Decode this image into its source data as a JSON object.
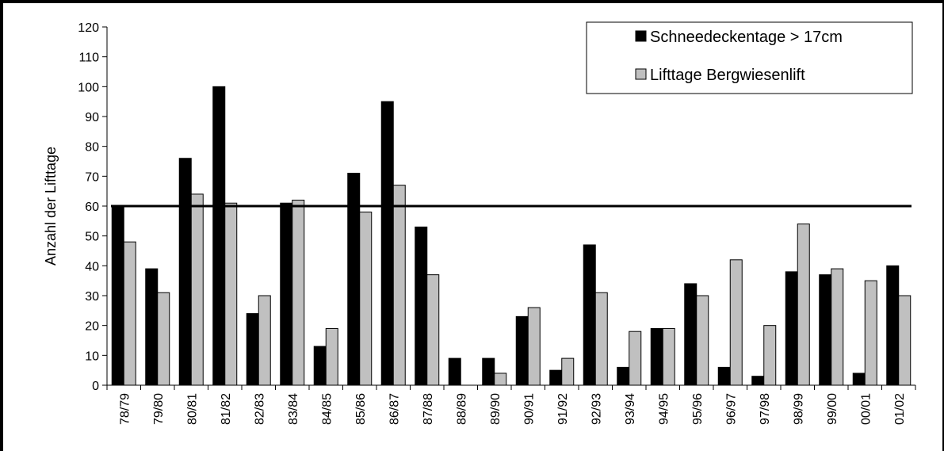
{
  "chart_data": {
    "type": "bar",
    "ylabel": "Anzahl der Lifttage",
    "ylim": [
      0,
      120
    ],
    "yticks": [
      0,
      10,
      20,
      30,
      40,
      50,
      60,
      70,
      80,
      90,
      100,
      110,
      120
    ],
    "categories": [
      "78/79",
      "79/80",
      "80/81",
      "81/82",
      "82/83",
      "83/84",
      "84/85",
      "85/86",
      "86/87",
      "87/88",
      "88/89",
      "89/90",
      "90/91",
      "91/92",
      "92/93",
      "93/94",
      "94/95",
      "95/96",
      "96/97",
      "97/98",
      "98/99",
      "99/00",
      "00/01",
      "01/02"
    ],
    "series": [
      {
        "name": "Schneedeckentage > 17cm",
        "color": "#000000",
        "values": [
          60,
          39,
          76,
          100,
          24,
          61,
          13,
          71,
          95,
          53,
          9,
          9,
          23,
          5,
          47,
          6,
          19,
          34,
          6,
          3,
          38,
          37,
          4,
          40
        ]
      },
      {
        "name": "Lifttage Bergwiesenlift",
        "color": "#c0c0c0",
        "values": [
          48,
          31,
          64,
          61,
          30,
          62,
          19,
          58,
          67,
          37,
          0,
          4,
          26,
          9,
          31,
          18,
          19,
          30,
          42,
          20,
          54,
          39,
          35,
          30
        ]
      }
    ],
    "reference_line": 60,
    "legend_position": "top-right",
    "grid": false
  }
}
